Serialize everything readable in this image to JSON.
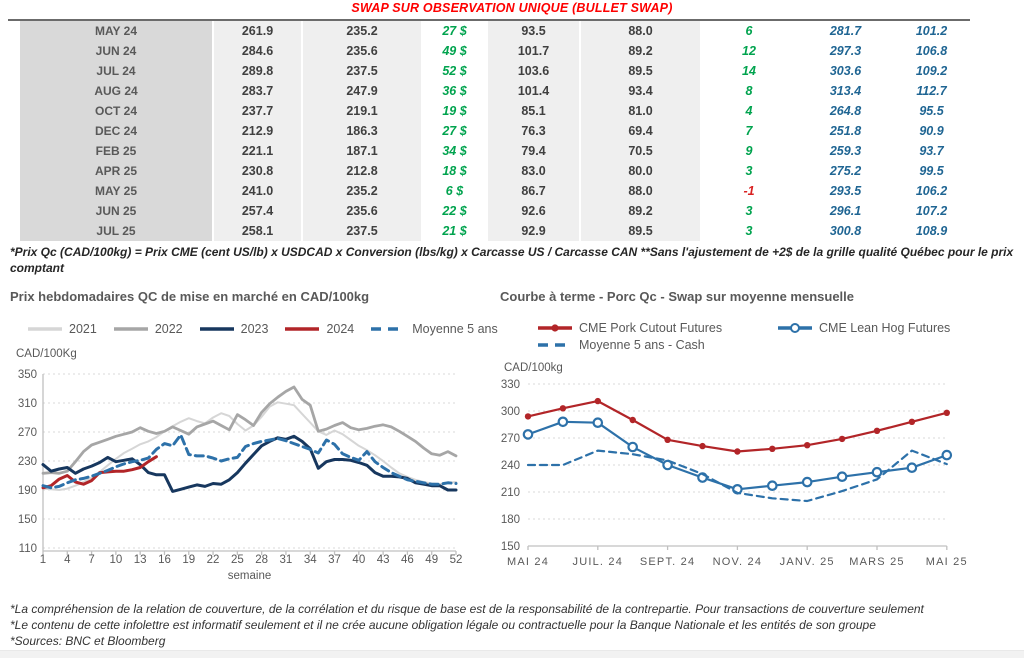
{
  "title": "SWAP SUR OBSERVATION UNIQUE (BULLET SWAP)",
  "table": {
    "rows": [
      {
        "month": "MAY 24",
        "values": [
          "261.9",
          "235.2",
          "27 $",
          "93.5",
          "88.0",
          "6",
          "281.7",
          "101.2"
        ]
      },
      {
        "month": "JUN 24",
        "values": [
          "284.6",
          "235.6",
          "49 $",
          "101.7",
          "89.2",
          "12",
          "297.3",
          "106.8"
        ]
      },
      {
        "month": "JUL 24",
        "values": [
          "289.8",
          "237.5",
          "52 $",
          "103.6",
          "89.5",
          "14",
          "303.6",
          "109.2"
        ]
      },
      {
        "month": "AUG 24",
        "values": [
          "283.7",
          "247.9",
          "36 $",
          "101.4",
          "93.4",
          "8",
          "313.4",
          "112.7"
        ]
      },
      {
        "month": "OCT 24",
        "values": [
          "237.7",
          "219.1",
          "19 $",
          "85.1",
          "81.0",
          "4",
          "264.8",
          "95.5"
        ]
      },
      {
        "month": "DEC 24",
        "values": [
          "212.9",
          "186.3",
          "27 $",
          "76.3",
          "69.4",
          "7",
          "251.8",
          "90.9"
        ]
      },
      {
        "month": "FEB 25",
        "values": [
          "221.1",
          "187.1",
          "34 $",
          "79.4",
          "70.5",
          "9",
          "259.3",
          "93.7"
        ]
      },
      {
        "month": "APR 25",
        "values": [
          "230.8",
          "212.8",
          "18 $",
          "83.0",
          "80.0",
          "3",
          "275.2",
          "99.5"
        ]
      },
      {
        "month": "MAY 25",
        "values": [
          "241.0",
          "235.2",
          "6 $",
          "86.7",
          "88.0",
          "-1",
          "293.5",
          "106.2"
        ]
      },
      {
        "month": "JUN 25",
        "values": [
          "257.4",
          "235.6",
          "22 $",
          "92.6",
          "89.2",
          "3",
          "296.1",
          "107.2"
        ]
      },
      {
        "month": "JUL 25",
        "values": [
          "258.1",
          "237.5",
          "21 $",
          "92.9",
          "89.5",
          "3",
          "300.8",
          "108.9"
        ]
      }
    ],
    "colors": {
      "title_red": "#fe0000",
      "positive_green": "#00a34e",
      "negative_red": "#d92121",
      "futures_blue": "#1f6593",
      "month_bg": "#d9d9d9",
      "shade_bg": "#efefef"
    }
  },
  "table_footnote": "*Prix Qc (CAD/100kg) = Prix CME (cent US/lb) x USDCAD x Conversion (lbs/kg) x Carcasse US / Carcasse CAN **Sans l'ajustement de +2$ de la grille qualité Québec pour le prix comptant",
  "chart_data": [
    {
      "type": "line",
      "title": "Prix hebdomadaires QC de mise en marché en CAD/100kg",
      "ylabel": "CAD/100Kg",
      "xlabel": "semaine",
      "ylim": [
        110,
        350
      ],
      "yticks": [
        110,
        150,
        190,
        230,
        270,
        310,
        350
      ],
      "xticks": [
        1,
        4,
        7,
        10,
        13,
        16,
        19,
        22,
        25,
        28,
        31,
        34,
        37,
        40,
        43,
        46,
        49,
        52
      ],
      "x_range": [
        1,
        52
      ],
      "grid": true,
      "legend_position": "top",
      "series": [
        {
          "name": "2021",
          "color": "#d6d6d6",
          "style": "solid",
          "width": 2,
          "x_start": 1,
          "values": [
            192,
            191,
            190,
            192,
            196,
            201,
            207,
            215,
            224,
            233,
            241,
            247,
            253,
            257,
            263,
            271,
            278,
            284,
            289,
            285,
            282,
            290,
            296,
            292,
            281,
            272,
            279,
            291,
            305,
            311,
            309,
            307,
            295,
            283,
            271,
            266,
            272,
            267,
            259,
            251,
            245,
            238,
            230,
            221,
            213,
            208,
            204,
            201,
            199,
            198,
            200,
            201
          ]
        },
        {
          "name": "2022",
          "color": "#a6a6a6",
          "style": "solid",
          "width": 2.8,
          "x_start": 1,
          "values": [
            213,
            214,
            213,
            216,
            229,
            243,
            252,
            256,
            260,
            264,
            267,
            270,
            276,
            271,
            268,
            271,
            277,
            272,
            267,
            277,
            281,
            285,
            279,
            273,
            294,
            287,
            279,
            297,
            309,
            318,
            326,
            332,
            315,
            307,
            271,
            274,
            279,
            283,
            276,
            273,
            275,
            278,
            280,
            277,
            271,
            264,
            257,
            248,
            240,
            238,
            243,
            237
          ]
        },
        {
          "name": "2023",
          "color": "#17375e",
          "style": "solid",
          "width": 3,
          "x_start": 1,
          "values": [
            225,
            216,
            219,
            221,
            213,
            219,
            223,
            228,
            235,
            229,
            231,
            233,
            225,
            214,
            211,
            211,
            188,
            191,
            194,
            197,
            195,
            199,
            198,
            204,
            214,
            227,
            239,
            251,
            257,
            262,
            260,
            264,
            257,
            247,
            220,
            229,
            232,
            232,
            231,
            228,
            224,
            214,
            209,
            209,
            208,
            206,
            200,
            198,
            196,
            196,
            190,
            190
          ]
        },
        {
          "name": "2024",
          "color": "#b22528",
          "style": "solid",
          "width": 3,
          "x_start": 1,
          "values": [
            193,
            196,
            205,
            210,
            201,
            198,
            203,
            214,
            215,
            216,
            216,
            218,
            221,
            229,
            236
          ]
        },
        {
          "name": "Moyenne 5 ans",
          "color": "#2d71a9",
          "style": "dashed",
          "width": 3,
          "x_start": 1,
          "values": [
            196,
            193,
            195,
            200,
            204,
            206,
            209,
            213,
            217,
            222,
            226,
            229,
            231,
            234,
            246,
            254,
            251,
            266,
            239,
            237,
            237,
            234,
            230,
            233,
            235,
            250,
            254,
            257,
            259,
            261,
            258,
            254,
            250,
            246,
            241,
            259,
            253,
            240,
            235,
            231,
            243,
            229,
            221,
            214,
            209,
            204,
            202,
            200,
            198,
            198,
            200,
            199
          ]
        }
      ]
    },
    {
      "type": "line",
      "title": "Courbe à terme - Porc Qc - Swap sur moyenne mensuelle",
      "ylabel": "CAD/100kg",
      "ylim": [
        150,
        330
      ],
      "yticks": [
        150,
        180,
        210,
        240,
        270,
        300,
        330
      ],
      "xtick_labels": [
        "MAI 24",
        "JUIL. 24",
        "SEPT. 24",
        "NOV. 24",
        "JANV. 25",
        "MARS 25",
        "MAI 25"
      ],
      "xtick_indices": [
        0,
        2,
        4,
        6,
        8,
        10,
        12
      ],
      "n_points": 13,
      "grid": true,
      "legend_position": "top",
      "series": [
        {
          "name": "CME Pork Cutout Futures",
          "color": "#b22528",
          "style": "solid",
          "marker": "filled",
          "width": 2.2,
          "values": [
            294,
            303,
            311,
            290,
            268,
            261,
            255,
            258,
            262,
            269,
            278,
            288,
            298
          ]
        },
        {
          "name": "CME Lean Hog Futures",
          "color": "#2d71a9",
          "style": "solid",
          "marker": "open",
          "width": 2.2,
          "values": [
            274,
            288,
            287,
            260,
            240,
            226,
            213,
            217,
            221,
            227,
            232,
            237,
            251
          ]
        },
        {
          "name": "Moyenne 5 ans - Cash",
          "color": "#2d71a9",
          "style": "dashed",
          "marker": "none",
          "width": 2.2,
          "values": [
            240,
            240,
            256,
            252,
            245,
            230,
            209,
            203,
            200,
            211,
            224,
            256,
            241
          ]
        }
      ]
    }
  ],
  "footnotes": [
    "*La compréhension de la relation de couverture, de la corrélation et du risque de base est de la responsabilité de la contrepartie. Pour transactions de couverture seulement",
    "*Le contenu de cette infolettre est informatif seulement et il ne crée aucune obligation légale ou contractuelle pour la Banque Nationale et les entités de son groupe",
    "*Sources: BNC et Bloomberg"
  ]
}
